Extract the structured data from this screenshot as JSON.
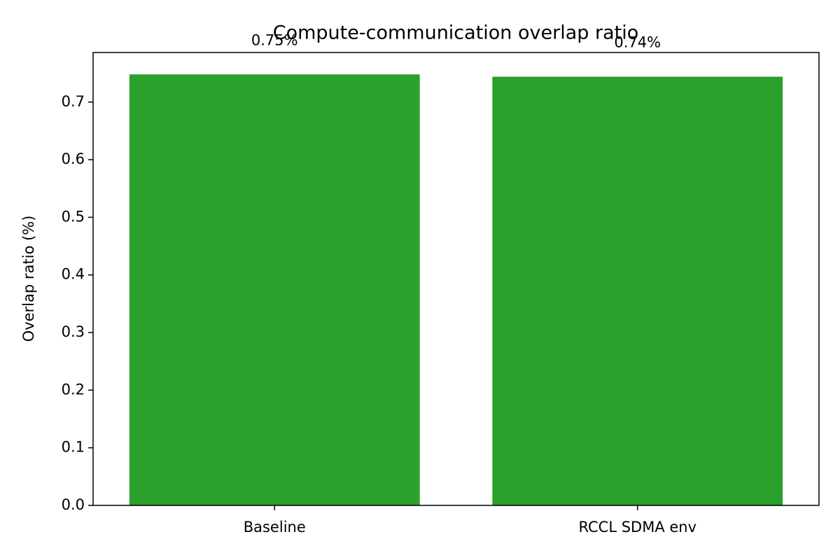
{
  "chart_data": {
    "type": "bar",
    "title": "Compute-communication overlap ratio",
    "ylabel": "Overlap ratio (%)",
    "categories": [
      "Baseline",
      "RCCL SDMA env"
    ],
    "values": [
      0.748,
      0.744
    ],
    "value_labels": [
      "0.75%",
      "0.74%"
    ],
    "color": "#2ca02c",
    "ylim": [
      0,
      0.786
    ],
    "yticks": [
      {
        "value": 0,
        "label": "0.0"
      },
      0.1,
      0.2,
      0.3,
      0.4,
      0.5,
      0.6,
      0.7
    ],
    "grid": false
  }
}
